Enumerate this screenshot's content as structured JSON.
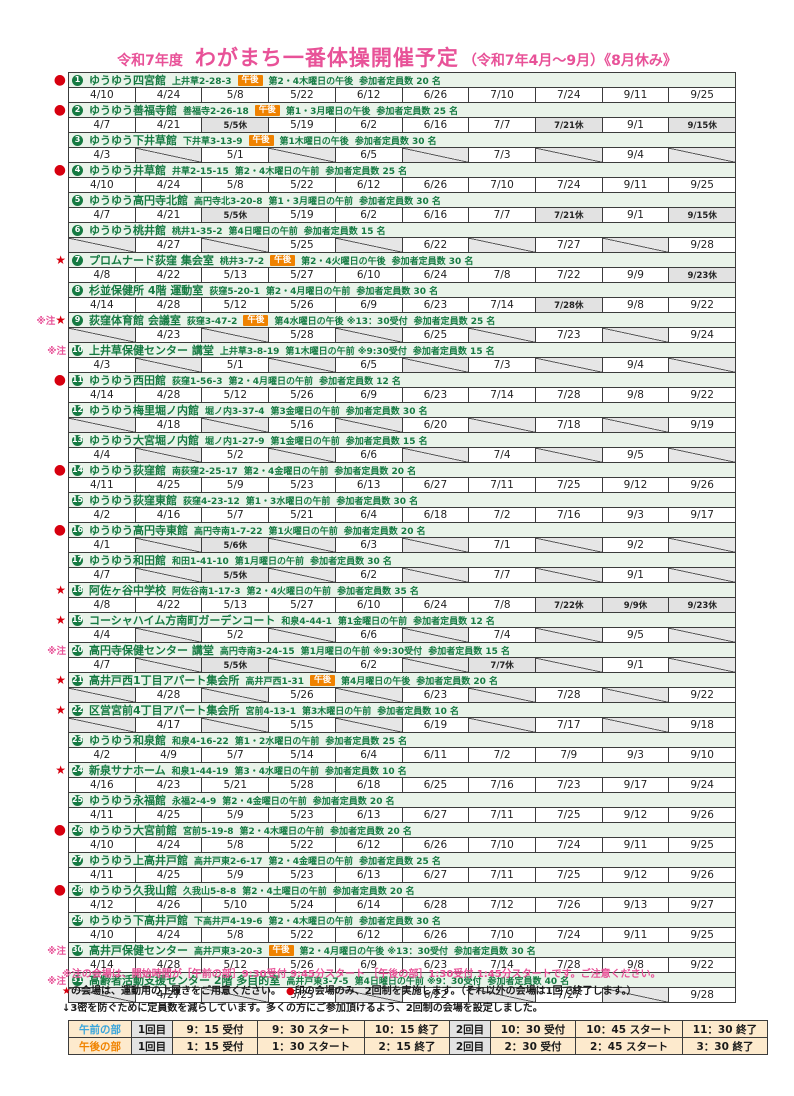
{
  "title": {
    "prefix": "令和7年度",
    "main": "わがまち一番体操開催予定",
    "suffix": "（令和7年4月～9月）《8月休み》"
  },
  "colors": {
    "title_pink": "#e85298",
    "header_green": "#157a42",
    "header_bg_green": "#e9f3e9",
    "marker_red": "#d7000f",
    "badge_orange": "#ef8200",
    "am_label_blue": "#3aa6dc",
    "pm_label_orange": "#f08300",
    "timetable_bg": "#fdeacd"
  },
  "marker_glyphs": {
    "dot": "●",
    "star": "★",
    "note": "※注",
    "note-star": "※注★"
  },
  "venues": [
    {
      "num": "1",
      "marker": "dot",
      "name": "ゆうゆう四宮館",
      "address": "上井草2-28-3",
      "badge": "午後",
      "schedule": "第2・4木曜日の午後",
      "capacity": "参加者定員数 20 名",
      "dates": [
        "4/10",
        "4/24",
        "5/8",
        "5/22",
        "6/12",
        "6/26",
        "7/10",
        "7/24",
        "9/11",
        "9/25"
      ]
    },
    {
      "num": "2",
      "marker": "dot",
      "name": "ゆうゆう善福寺館",
      "address": "善福寺2-26-18",
      "badge": "午後",
      "schedule": "第1・3月曜日の午後",
      "capacity": "参加者定員数 25 名",
      "dates": [
        "4/7",
        "4/21",
        "5/5休",
        "5/19",
        "6/2",
        "6/16",
        "7/7",
        "7/21休",
        "9/1",
        "9/15休"
      ]
    },
    {
      "num": "3",
      "marker": "",
      "name": "ゆうゆう下井草館",
      "address": "下井草3-13-9",
      "badge": "午後",
      "schedule": "第1木曜日の午後",
      "capacity": "参加者定員数 30 名",
      "dates": [
        "4/3",
        "",
        "5/1",
        "",
        "6/5",
        "",
        "7/3",
        "",
        "9/4",
        ""
      ]
    },
    {
      "num": "4",
      "marker": "dot",
      "name": "ゆうゆう井草館",
      "address": "井草2-15-15",
      "badge": "",
      "schedule": "第2・4木曜日の午前",
      "capacity": "参加者定員数 25 名",
      "dates": [
        "4/10",
        "4/24",
        "5/8",
        "5/22",
        "6/12",
        "6/26",
        "7/10",
        "7/24",
        "9/11",
        "9/25"
      ]
    },
    {
      "num": "5",
      "marker": "",
      "name": "ゆうゆう高円寺北館",
      "address": "高円寺北3-20-8",
      "badge": "",
      "schedule": "第1・3月曜日の午前",
      "capacity": "参加者定員数 30 名",
      "dates": [
        "4/7",
        "4/21",
        "5/5休",
        "5/19",
        "6/2",
        "6/16",
        "7/7",
        "7/21休",
        "9/1",
        "9/15休"
      ]
    },
    {
      "num": "6",
      "marker": "",
      "name": "ゆうゆう桃井館",
      "address": "桃井1-35-2",
      "badge": "",
      "schedule": "第4日曜日の午前",
      "capacity": "参加者定員数 15 名",
      "dates": [
        "",
        "4/27",
        "",
        "5/25",
        "",
        "6/22",
        "",
        "7/27",
        "",
        "9/28"
      ]
    },
    {
      "num": "7",
      "marker": "star",
      "name": "プロムナード荻窪 集会室",
      "address": "桃井3-7-2",
      "badge": "午後",
      "schedule": "第2・4火曜日の午後",
      "capacity": "参加者定員数 30 名",
      "dates": [
        "4/8",
        "4/22",
        "5/13",
        "5/27",
        "6/10",
        "6/24",
        "7/8",
        "7/22",
        "9/9",
        "9/23休"
      ]
    },
    {
      "num": "8",
      "marker": "",
      "name": "杉並保健所 4階 運動室",
      "address": "荻窪5-20-1",
      "badge": "",
      "schedule": "第2・4月曜日の午前",
      "capacity": "参加者定員数 30 名",
      "dates": [
        "4/14",
        "4/28",
        "5/12",
        "5/26",
        "6/9",
        "6/23",
        "7/14",
        "7/28休",
        "9/8",
        "9/22"
      ]
    },
    {
      "num": "9",
      "marker": "note-star",
      "name": "荻窪体育館 会議室",
      "address": "荻窪3-47-2",
      "badge": "午後",
      "schedule": "第4水曜日の午後 ※13：30受付",
      "capacity": "参加者定員数 25 名",
      "dates": [
        "",
        "4/23",
        "",
        "5/28",
        "",
        "6/25",
        "",
        "7/23",
        "",
        "9/24"
      ]
    },
    {
      "num": "10",
      "marker": "note",
      "name": "上井草保健センター 講堂",
      "address": "上井草3-8-19",
      "badge": "",
      "schedule": "第1木曜日の午前 ※9:30受付",
      "capacity": "参加者定員数 15 名",
      "dates": [
        "4/3",
        "",
        "5/1",
        "",
        "6/5",
        "",
        "7/3",
        "",
        "9/4",
        ""
      ]
    },
    {
      "num": "11",
      "marker": "dot",
      "name": "ゆうゆう西田館",
      "address": "荻窪1-56-3",
      "badge": "",
      "schedule": "第2・4月曜日の午前",
      "capacity": "参加者定員数 12 名",
      "dates": [
        "4/14",
        "4/28",
        "5/12",
        "5/26",
        "6/9",
        "6/23",
        "7/14",
        "7/28",
        "9/8",
        "9/22"
      ]
    },
    {
      "num": "12",
      "marker": "",
      "name": "ゆうゆう梅里堀ノ内館",
      "address": "堀ノ内3-37-4",
      "badge": "",
      "schedule": "第3金曜日の午前",
      "capacity": "参加者定員数 30 名",
      "dates": [
        "",
        "4/18",
        "",
        "5/16",
        "",
        "6/20",
        "",
        "7/18",
        "",
        "9/19"
      ]
    },
    {
      "num": "13",
      "marker": "",
      "name": "ゆうゆう大宮堀ノ内館",
      "address": "堀ノ内1-27-9",
      "badge": "",
      "schedule": "第1金曜日の午前",
      "capacity": "参加者定員数 15 名",
      "dates": [
        "4/4",
        "",
        "5/2",
        "",
        "6/6",
        "",
        "7/4",
        "",
        "9/5",
        ""
      ]
    },
    {
      "num": "14",
      "marker": "dot",
      "name": "ゆうゆう荻窪館",
      "address": "南荻窪2-25-17",
      "badge": "",
      "schedule": "第2・4金曜日の午前",
      "capacity": "参加者定員数 20 名",
      "dates": [
        "4/11",
        "4/25",
        "5/9",
        "5/23",
        "6/13",
        "6/27",
        "7/11",
        "7/25",
        "9/12",
        "9/26"
      ]
    },
    {
      "num": "15",
      "marker": "",
      "name": "ゆうゆう荻窪東館",
      "address": "荻窪4-23-12",
      "badge": "",
      "schedule": "第1・3水曜日の午前",
      "capacity": "参加者定員数 30 名",
      "dates": [
        "4/2",
        "4/16",
        "5/7",
        "5/21",
        "6/4",
        "6/18",
        "7/2",
        "7/16",
        "9/3",
        "9/17"
      ]
    },
    {
      "num": "16",
      "marker": "dot",
      "name": "ゆうゆう高円寺東館",
      "address": "高円寺南1-7-22",
      "badge": "",
      "schedule": "第1火曜日の午前",
      "capacity": "参加者定員数 20 名",
      "dates": [
        "4/1",
        "",
        "5/6休",
        "",
        "6/3",
        "",
        "7/1",
        "",
        "9/2",
        ""
      ]
    },
    {
      "num": "17",
      "marker": "",
      "name": "ゆうゆう和田館",
      "address": "和田1-41-10",
      "badge": "",
      "schedule": "第1月曜日の午前",
      "capacity": "参加者定員数 30 名",
      "dates": [
        "4/7",
        "",
        "5/5休",
        "",
        "6/2",
        "",
        "7/7",
        "",
        "9/1",
        ""
      ]
    },
    {
      "num": "18",
      "marker": "star",
      "name": "阿佐ヶ谷中学校",
      "address": "阿佐谷南1-17-3",
      "badge": "",
      "schedule": "第2・4火曜日の午前",
      "capacity": "参加者定員数 35 名",
      "dates": [
        "4/8",
        "4/22",
        "5/13",
        "5/27",
        "6/10",
        "6/24",
        "7/8",
        "7/22休",
        "9/9休",
        "9/23休"
      ]
    },
    {
      "num": "19",
      "marker": "star",
      "name": "コーシャハイム方南町ガーデンコート",
      "address": "和泉4-44-1",
      "badge": "",
      "schedule": "第1金曜日の午前",
      "capacity": "参加者定員数 12 名",
      "dates": [
        "4/4",
        "",
        "5/2",
        "",
        "6/6",
        "",
        "7/4",
        "",
        "9/5",
        ""
      ]
    },
    {
      "num": "20",
      "marker": "note",
      "name": "高円寺保健センター 講堂",
      "address": "高円寺南3-24-15",
      "badge": "",
      "schedule": "第1月曜日の午前 ※9:30受付",
      "capacity": "参加者定員数 15 名",
      "dates": [
        "4/7",
        "",
        "5/5休",
        "",
        "6/2",
        "",
        "7/7休",
        "",
        "9/1",
        ""
      ]
    },
    {
      "num": "21",
      "marker": "star",
      "name": "高井戸西1丁目アパート集会所",
      "address": "高井戸西1-31",
      "badge": "午後",
      "schedule": "第4月曜日の午後",
      "capacity": "参加者定員数 20 名",
      "dates": [
        "",
        "4/28",
        "",
        "5/26",
        "",
        "6/23",
        "",
        "7/28",
        "",
        "9/22"
      ]
    },
    {
      "num": "22",
      "marker": "star",
      "name": "区営宮前4丁目アパート集会所",
      "address": "宮前4-13-1",
      "badge": "",
      "schedule": "第3木曜日の午前",
      "capacity": "参加者定員数 10 名",
      "dates": [
        "",
        "4/17",
        "",
        "5/15",
        "",
        "6/19",
        "",
        "7/17",
        "",
        "9/18"
      ]
    },
    {
      "num": "23",
      "marker": "",
      "name": "ゆうゆう和泉館",
      "address": "和泉4-16-22",
      "badge": "",
      "schedule": "第1・2水曜日の午前",
      "capacity": "参加者定員数 25 名",
      "dates": [
        "4/2",
        "4/9",
        "5/7",
        "5/14",
        "6/4",
        "6/11",
        "7/2",
        "7/9",
        "9/3",
        "9/10"
      ]
    },
    {
      "num": "24",
      "marker": "star",
      "name": "新泉サナホーム",
      "address": "和泉1-44-19",
      "badge": "",
      "schedule": "第3・4水曜日の午前",
      "capacity": "参加者定員数 10 名",
      "dates": [
        "4/16",
        "4/23",
        "5/21",
        "5/28",
        "6/18",
        "6/25",
        "7/16",
        "7/23",
        "9/17",
        "9/24"
      ]
    },
    {
      "num": "25",
      "marker": "",
      "name": "ゆうゆう永福館",
      "address": "永福2-4-9",
      "badge": "",
      "schedule": "第2・4金曜日の午前",
      "capacity": "参加者定員数 20 名",
      "dates": [
        "4/11",
        "4/25",
        "5/9",
        "5/23",
        "6/13",
        "6/27",
        "7/11",
        "7/25",
        "9/12",
        "9/26"
      ]
    },
    {
      "num": "26",
      "marker": "dot",
      "name": "ゆうゆう大宮前館",
      "address": "宮前5-19-8",
      "badge": "",
      "schedule": "第2・4木曜日の午前",
      "capacity": "参加者定員数 20 名",
      "dates": [
        "4/10",
        "4/24",
        "5/8",
        "5/22",
        "6/12",
        "6/26",
        "7/10",
        "7/24",
        "9/11",
        "9/25"
      ]
    },
    {
      "num": "27",
      "marker": "",
      "name": "ゆうゆう上高井戸館",
      "address": "高井戸東2-6-17",
      "badge": "",
      "schedule": "第2・4金曜日の午前",
      "capacity": "参加者定員数 25 名",
      "dates": [
        "4/11",
        "4/25",
        "5/9",
        "5/23",
        "6/13",
        "6/27",
        "7/11",
        "7/25",
        "9/12",
        "9/26"
      ]
    },
    {
      "num": "28",
      "marker": "dot",
      "name": "ゆうゆう久我山館",
      "address": "久我山5-8-8",
      "badge": "",
      "schedule": "第2・4土曜日の午前",
      "capacity": "参加者定員数 20 名",
      "dates": [
        "4/12",
        "4/26",
        "5/10",
        "5/24",
        "6/14",
        "6/28",
        "7/12",
        "7/26",
        "9/13",
        "9/27"
      ]
    },
    {
      "num": "29",
      "marker": "",
      "name": "ゆうゆう下高井戸館",
      "address": "下高井戸4-19-6",
      "badge": "",
      "schedule": "第2・4木曜日の午前",
      "capacity": "参加者定員数 30 名",
      "dates": [
        "4/10",
        "4/24",
        "5/8",
        "5/22",
        "6/12",
        "6/26",
        "7/10",
        "7/24",
        "9/11",
        "9/25"
      ]
    },
    {
      "num": "30",
      "marker": "note",
      "name": "高井戸保健センター",
      "address": "高井戸東3-20-3",
      "badge": "午後",
      "schedule": "第2・4月曜日の午後 ※13：30受付",
      "capacity": "参加者定員数 30 名",
      "dates": [
        "4/14",
        "4/28",
        "5/12",
        "5/26",
        "6/9",
        "6/23",
        "7/14",
        "7/28",
        "9/8",
        "9/22"
      ]
    },
    {
      "num": "31",
      "marker": "note",
      "name": "高齢者活動支援センター 2階 多目的室",
      "address": "高井戸東3-7-5",
      "badge": "",
      "schedule": "第4日曜日の午前 ※9：30受付",
      "capacity": "参加者定員数 40 名",
      "dates": [
        "",
        "4/27",
        "",
        "5/25",
        "",
        "6/22",
        "",
        "7/27",
        "",
        "9/28"
      ]
    }
  ],
  "notes": {
    "line1": "※注の会場は、開始時間が［午前の部］9:30受付 9:45分スタート ［午後の部］1:30受付 1:45分スタートです。ご注意ください。",
    "line2_star": "★",
    "line2_a": "の会場は、運動用の上履きをご用意ください。　",
    "line2_dot": "●",
    "line2_b": "印の会場のみ、2回制を実施します。（それ以外の会場は1回で終了します。）",
    "line3": "↓3密を防ぐために定員数を減らしています。多くの方にご参加頂けるよう、2回制の会場を設定しました。"
  },
  "time_table": {
    "rows": [
      {
        "label": "午前の部",
        "period": "am",
        "cells": [
          "1回目",
          "9：15 受付",
          "9：30 スタート",
          "10：15 終了",
          "2回目",
          "10：30 受付",
          "10：45 スタート",
          "11：30 終了"
        ]
      },
      {
        "label": "午後の部",
        "period": "pm",
        "cells": [
          "1回目",
          "1：15 受付",
          "1：30 スタート",
          "2：15 終了",
          "2回目",
          "2：30 受付",
          "2：45 スタート",
          "3：30 終了"
        ]
      }
    ]
  }
}
